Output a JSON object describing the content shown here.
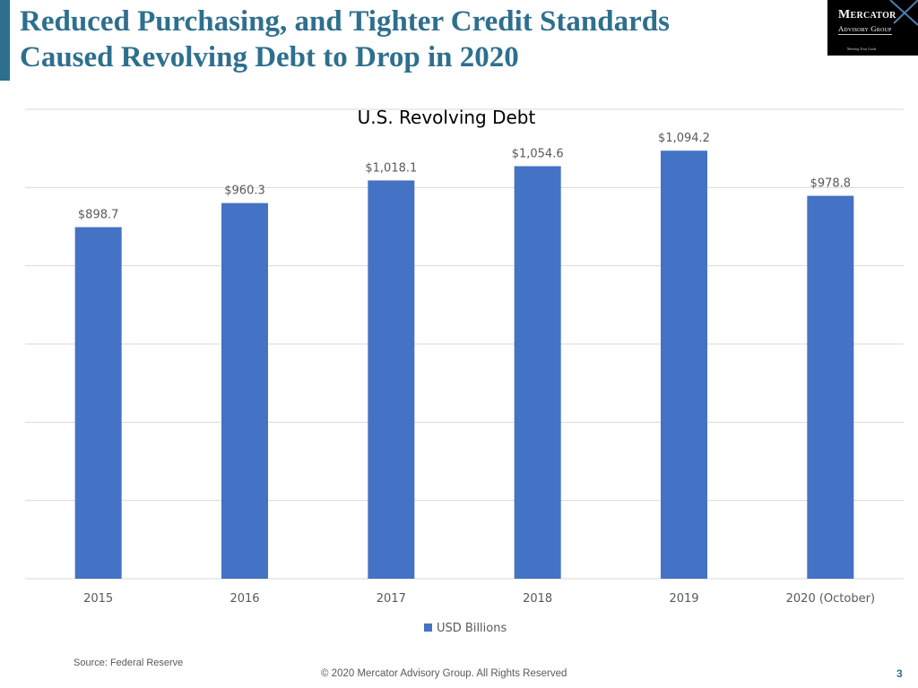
{
  "slide": {
    "title_lines": [
      "Reduced Purchasing, and Tighter Credit Standards",
      "Caused Revolving Debt to Drop in 2020"
    ],
    "logo": {
      "line1": "Mercator",
      "line2": "Advisory Group",
      "line3": "Meeting Your Goals"
    },
    "source": "Source: Federal Reserve",
    "copyright": "© 2020 Mercator Advisory Group. All Rights Reserved",
    "page_number": "3"
  },
  "colors": {
    "title": "#2e6f8e",
    "bar": "#4472c4",
    "grid": "#d9d9d9",
    "text": "#595959"
  },
  "chart_data": {
    "type": "bar",
    "title": "U.S. Revolving Debt",
    "categories": [
      "2015",
      "2016",
      "2017",
      "2018",
      "2019",
      "2020 (October)"
    ],
    "series": [
      {
        "name": "USD Billions",
        "values": [
          898.7,
          960.3,
          1018.1,
          1054.6,
          1094.2,
          978.8
        ],
        "labels": [
          "$898.7",
          "$960.3",
          "$1,018.1",
          "$1,054.6",
          "$1,094.2",
          "$978.8"
        ]
      }
    ],
    "ylim": [
      0,
      1200
    ],
    "grid": true,
    "show_y_tick_labels": false,
    "legend_position": "bottom"
  }
}
